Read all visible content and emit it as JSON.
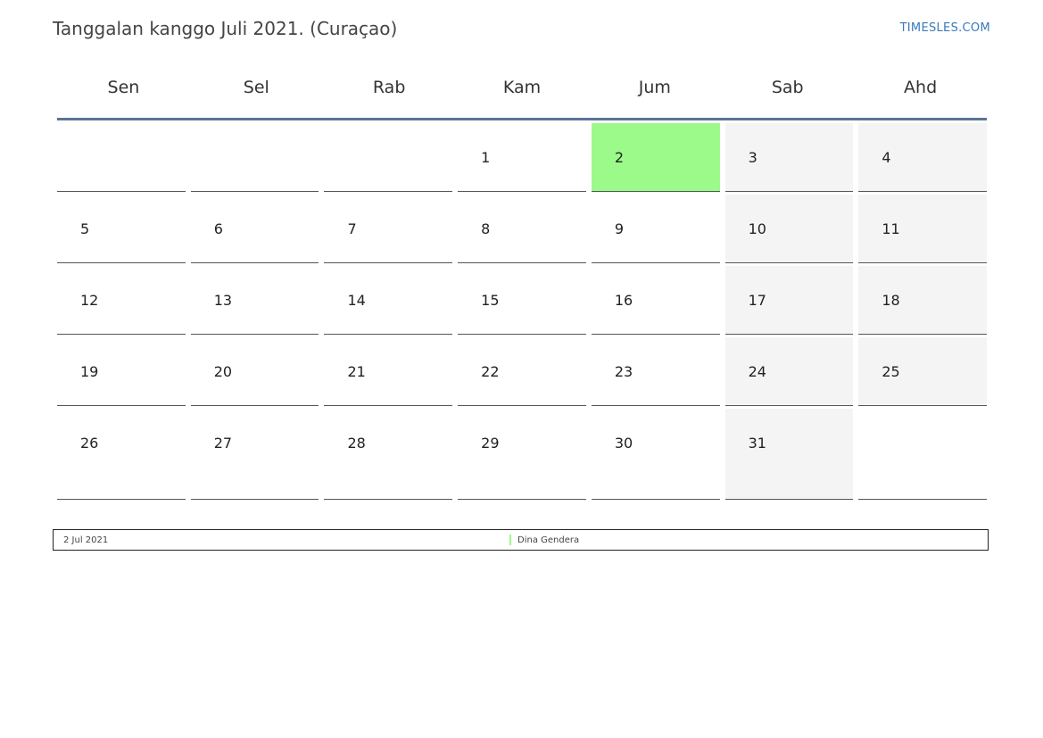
{
  "header": {
    "title": "Tanggalan kanggo Juli 2021. (Curaçao)",
    "site": "TIMESLES.COM"
  },
  "weekdays": [
    "Sen",
    "Sel",
    "Rab",
    "Kam",
    "Jum",
    "Sab",
    "Ahd"
  ],
  "weeks": [
    [
      "",
      "",
      "",
      "1",
      "2",
      "3",
      "4"
    ],
    [
      "5",
      "6",
      "7",
      "8",
      "9",
      "10",
      "11"
    ],
    [
      "12",
      "13",
      "14",
      "15",
      "16",
      "17",
      "18"
    ],
    [
      "19",
      "20",
      "21",
      "22",
      "23",
      "24",
      "25"
    ],
    [
      "26",
      "27",
      "28",
      "29",
      "30",
      "31",
      ""
    ]
  ],
  "highlight_color": "#9cfa8a",
  "weekend_color": "#f4f4f4",
  "legend": {
    "date": "2 Jul 2021",
    "holiday": "Dina Gendera"
  }
}
